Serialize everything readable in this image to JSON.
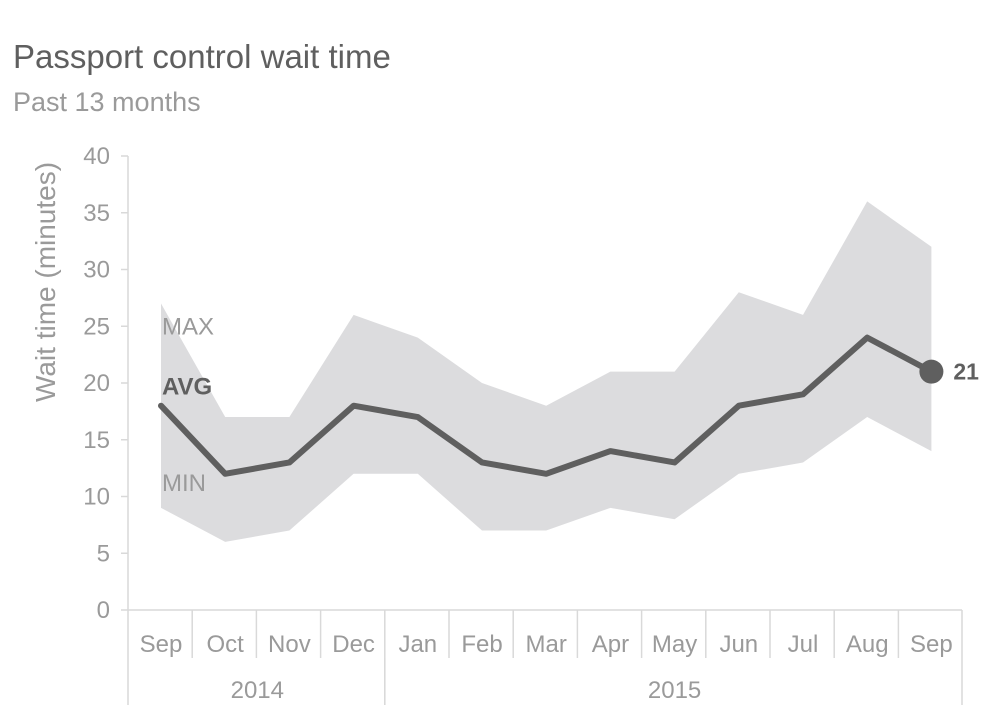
{
  "title": "Passport control wait time",
  "subtitle": "Past 13 months",
  "chart_data": {
    "type": "area",
    "ylabel": "Wait time (minutes)",
    "ylim": [
      0,
      40
    ],
    "yticks": [
      0,
      5,
      10,
      15,
      20,
      25,
      30,
      35,
      40
    ],
    "categories": [
      "Sep",
      "Oct",
      "Nov",
      "Dec",
      "Jan",
      "Feb",
      "Mar",
      "Apr",
      "May",
      "Jun",
      "Jul",
      "Aug",
      "Sep"
    ],
    "year_groups": [
      {
        "label": "2014",
        "start": 0,
        "end": 3
      },
      {
        "label": "2015",
        "start": 4,
        "end": 12
      }
    ],
    "series": [
      {
        "name": "MAX",
        "values": [
          27,
          17,
          17,
          26,
          24,
          20,
          18,
          21,
          21,
          28,
          26,
          36,
          32
        ]
      },
      {
        "name": "AVG",
        "values": [
          18,
          12,
          13,
          18,
          17,
          13,
          12,
          14,
          13,
          18,
          19,
          24,
          21
        ]
      },
      {
        "name": "MIN",
        "values": [
          9,
          6,
          7,
          12,
          12,
          7,
          7,
          9,
          8,
          12,
          13,
          17,
          14
        ]
      }
    ],
    "end_label": "21",
    "colors": {
      "band": "#dcdcde",
      "line": "#5f5f5f",
      "text": "#9a9a9a",
      "axis": "#d9d9d9"
    },
    "grid": false,
    "legend": "inline-left"
  }
}
